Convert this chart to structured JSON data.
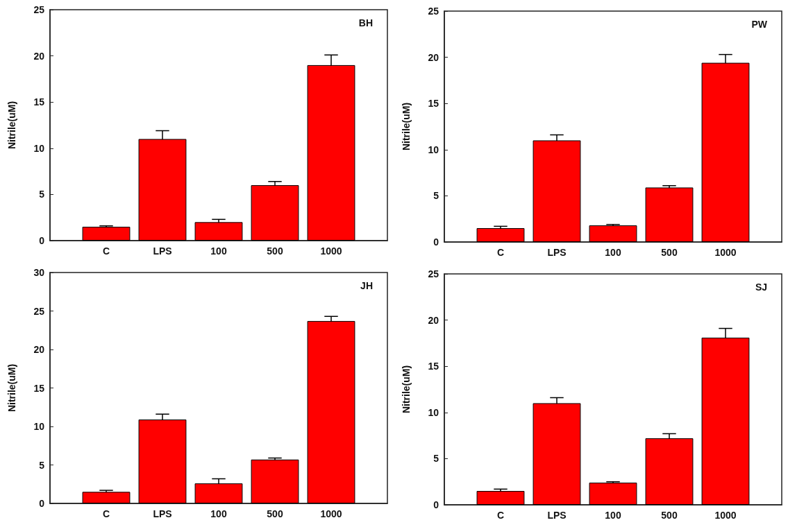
{
  "chart_data": [
    {
      "type": "bar",
      "ylabel": "Nitrile(uM)",
      "annotations": [
        "BH"
      ],
      "categories": [
        null,
        "C",
        "LPS",
        "100",
        "500",
        "1000",
        null
      ],
      "values": [
        null,
        1.5,
        11.0,
        2.0,
        6.0,
        19.0,
        null
      ],
      "errors": [
        null,
        0.1,
        0.9,
        0.3,
        0.4,
        1.1,
        null
      ],
      "color": "#ff0000",
      "ylim": [
        0,
        25
      ],
      "yticks": [
        0,
        5,
        10,
        15,
        20,
        25
      ],
      "grid": false
    },
    {
      "type": "bar",
      "ylabel": "Nitrile(uM)",
      "annotations": [
        "PW"
      ],
      "categories": [
        null,
        "C",
        "LPS",
        "100",
        "500",
        "1000",
        null
      ],
      "values": [
        null,
        1.5,
        11.0,
        1.8,
        5.9,
        19.4,
        null
      ],
      "errors": [
        null,
        0.2,
        0.6,
        0.1,
        0.2,
        0.9,
        null
      ],
      "color": "#ff0000",
      "ylim": [
        0,
        25
      ],
      "yticks": [
        0,
        5,
        10,
        15,
        20,
        25
      ],
      "grid": false
    },
    {
      "type": "bar",
      "ylabel": "Nitrile(uM)",
      "annotations": [
        "JH"
      ],
      "categories": [
        null,
        "C",
        "LPS",
        "100",
        "500",
        "1000",
        null
      ],
      "values": [
        null,
        1.5,
        10.9,
        2.6,
        5.7,
        23.7,
        null
      ],
      "errors": [
        null,
        0.2,
        0.7,
        0.6,
        0.2,
        0.6,
        null
      ],
      "color": "#ff0000",
      "ylim": [
        0,
        30
      ],
      "yticks": [
        0,
        5,
        10,
        15,
        20,
        25,
        30
      ],
      "grid": false
    },
    {
      "type": "bar",
      "ylabel": "Nitrile(uM)",
      "annotations": [
        "SJ"
      ],
      "categories": [
        null,
        "C",
        "LPS",
        "100",
        "500",
        "1000",
        null
      ],
      "values": [
        null,
        1.5,
        11.0,
        2.4,
        7.2,
        18.1,
        null
      ],
      "errors": [
        null,
        0.2,
        0.6,
        0.1,
        0.5,
        1.0,
        null
      ],
      "color": "#ff0000",
      "ylim": [
        0,
        25
      ],
      "yticks": [
        0,
        5,
        10,
        15,
        20,
        25
      ],
      "grid": false
    }
  ]
}
